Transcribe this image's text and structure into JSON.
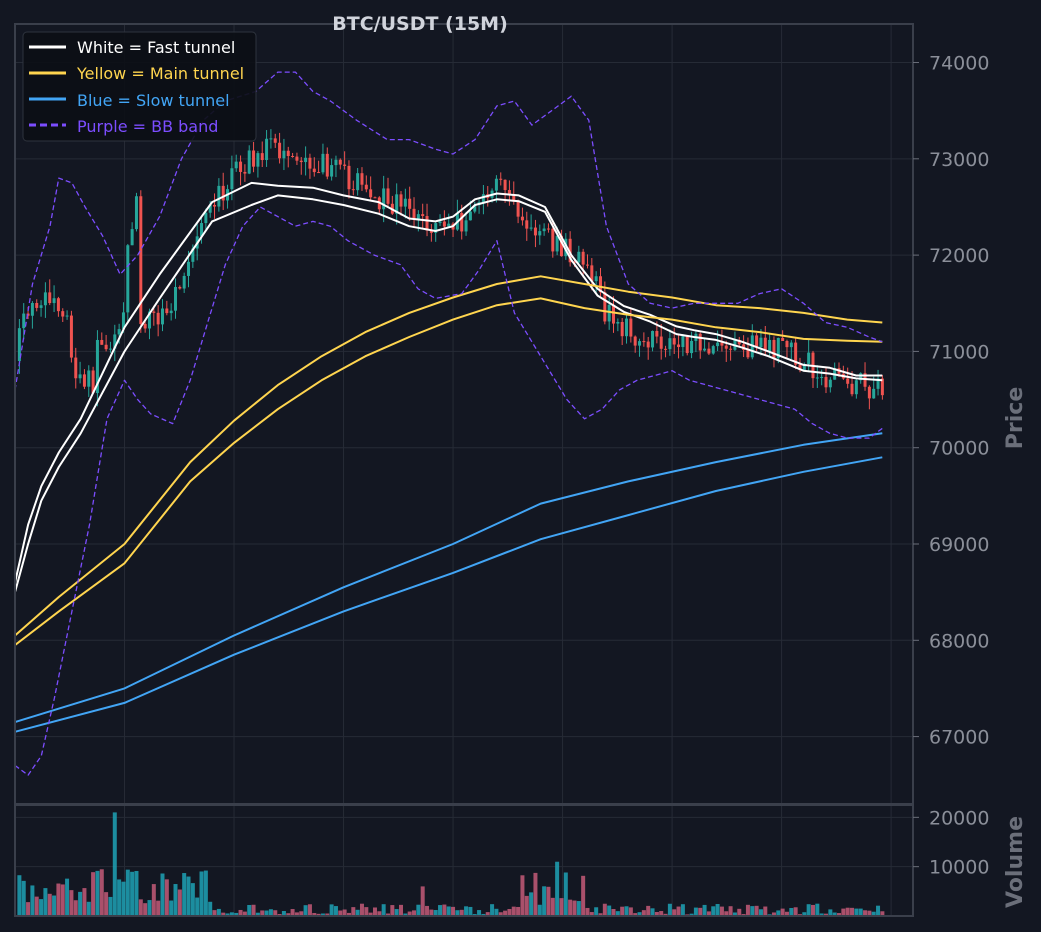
{
  "chart_data": {
    "type": "line",
    "title": "BTC/USDT (15M)",
    "colors": {
      "background": "#131722",
      "grid": "#262b36",
      "frame": "#3a3f4b",
      "up_candle": "#26a69a",
      "down_candle": "#ef5350",
      "fast": "#ffffff",
      "main": "#ffd54f",
      "slow": "#42a5f5",
      "bb": "#7c4dff"
    },
    "price_panel": {
      "ylabel": "Price",
      "ylim": [
        66300,
        74400
      ],
      "yticks": [
        67000,
        68000,
        69000,
        70000,
        71000,
        72000,
        73000,
        74000
      ],
      "ytick_labels": [
        "67000",
        "68000",
        "69000",
        "70000",
        "71000",
        "72000",
        "73000",
        "74000"
      ],
      "grid": true
    },
    "volume_panel": {
      "ylabel": "Volume",
      "ylim": [
        0,
        22500
      ],
      "yticks": [
        10000,
        20000
      ],
      "ytick_labels": [
        "10000",
        "20000"
      ],
      "grid": true
    },
    "x": {
      "range": [
        0,
        205
      ],
      "grid_lines": [
        25,
        50,
        75,
        100,
        125,
        150,
        175,
        200
      ]
    },
    "legend": {
      "position": "top-left",
      "entries": [
        {
          "label": "White = Fast tunnel",
          "color": "#ffffff",
          "style": "solid"
        },
        {
          "label": "Yellow = Main tunnel",
          "color": "#ffd54f",
          "style": "solid"
        },
        {
          "label": "Blue = Slow tunnel",
          "color": "#42a5f5",
          "style": "solid"
        },
        {
          "label": "Purple = BB band",
          "color": "#7c4dff",
          "style": "dashed"
        }
      ]
    },
    "series": [
      {
        "key": "fast_upper",
        "color": "#ffffff",
        "x": [
          0,
          3,
          6,
          10,
          15,
          25,
          33,
          45,
          54,
          60,
          68,
          75,
          83,
          90,
          96,
          100,
          105,
          110,
          115,
          121,
          127,
          133,
          139,
          145,
          151,
          155,
          160,
          166,
          172,
          180,
          186,
          192,
          198
        ],
        "y": [
          68600,
          69200,
          69600,
          69950,
          70300,
          71250,
          71800,
          72550,
          72750,
          72720,
          72700,
          72620,
          72550,
          72380,
          72350,
          72400,
          72580,
          72640,
          72620,
          72500,
          72000,
          71650,
          71470,
          71380,
          71260,
          71220,
          71180,
          71100,
          71000,
          70860,
          70830,
          70750,
          70750
        ]
      },
      {
        "key": "fast_lower",
        "color": "#ffffff",
        "x": [
          0,
          3,
          6,
          10,
          15,
          25,
          33,
          45,
          54,
          60,
          68,
          75,
          83,
          90,
          96,
          100,
          105,
          110,
          115,
          121,
          127,
          133,
          139,
          145,
          151,
          155,
          160,
          166,
          172,
          180,
          186,
          192,
          198
        ],
        "y": [
          68500,
          69000,
          69450,
          69800,
          70150,
          71000,
          71550,
          72350,
          72520,
          72620,
          72580,
          72520,
          72430,
          72300,
          72250,
          72300,
          72520,
          72580,
          72560,
          72450,
          71950,
          71580,
          71410,
          71310,
          71180,
          71150,
          71120,
          71040,
          70950,
          70800,
          70770,
          70720,
          70700
        ]
      },
      {
        "key": "main_upper",
        "color": "#ffd54f",
        "x": [
          0,
          10,
          25,
          40,
          50,
          60,
          70,
          80,
          90,
          100,
          110,
          120,
          130,
          140,
          150,
          160,
          170,
          180,
          190,
          198
        ],
        "y": [
          68050,
          68450,
          69000,
          69850,
          70280,
          70650,
          70950,
          71200,
          71400,
          71560,
          71700,
          71780,
          71700,
          71620,
          71560,
          71480,
          71450,
          71400,
          71330,
          71300
        ]
      },
      {
        "key": "main_lower",
        "color": "#ffd54f",
        "x": [
          0,
          10,
          25,
          40,
          50,
          60,
          70,
          80,
          90,
          100,
          110,
          120,
          130,
          140,
          150,
          160,
          170,
          180,
          190,
          198
        ],
        "y": [
          67950,
          68300,
          68800,
          69650,
          70050,
          70400,
          70700,
          70950,
          71150,
          71330,
          71480,
          71550,
          71450,
          71380,
          71330,
          71250,
          71200,
          71130,
          71110,
          71100
        ]
      },
      {
        "key": "slow_upper",
        "color": "#42a5f5",
        "x": [
          0,
          25,
          50,
          75,
          100,
          120,
          140,
          160,
          180,
          198
        ],
        "y": [
          67150,
          67500,
          68050,
          68550,
          69000,
          69420,
          69650,
          69850,
          70030,
          70150
        ]
      },
      {
        "key": "slow_lower",
        "color": "#42a5f5",
        "x": [
          0,
          25,
          50,
          75,
          100,
          120,
          140,
          160,
          180,
          198
        ],
        "y": [
          67050,
          67350,
          67850,
          68300,
          68700,
          69050,
          69300,
          69550,
          69750,
          69900
        ]
      },
      {
        "key": "bb_upper",
        "color": "#7c4dff",
        "dashed": true,
        "x": [
          0,
          4,
          8,
          10,
          13,
          16,
          20,
          24,
          28,
          33,
          38,
          43,
          48,
          55,
          60,
          64,
          68,
          72,
          78,
          85,
          90,
          96,
          100,
          105,
          110,
          114,
          118,
          124,
          127,
          131,
          135,
          140,
          145,
          150,
          155,
          160,
          165,
          170,
          175,
          180,
          185,
          190,
          195,
          198
        ],
        "y": [
          70600,
          71700,
          72300,
          72800,
          72750,
          72500,
          72200,
          71800,
          72000,
          72400,
          73000,
          73400,
          73600,
          73700,
          73900,
          73900,
          73700,
          73600,
          73400,
          73200,
          73200,
          73100,
          73050,
          73200,
          73550,
          73600,
          73350,
          73550,
          73650,
          73400,
          72300,
          71700,
          71500,
          71450,
          71500,
          71500,
          71500,
          71600,
          71650,
          71500,
          71300,
          71250,
          71150,
          71100
        ]
      },
      {
        "key": "bb_lower",
        "color": "#7c4dff",
        "dashed": true,
        "x": [
          0,
          3,
          6,
          9,
          13,
          17,
          21,
          25,
          28,
          31,
          36,
          40,
          44,
          48,
          52,
          56,
          60,
          64,
          68,
          72,
          76,
          82,
          88,
          92,
          96,
          102,
          106,
          110,
          114,
          118,
          122,
          126,
          130,
          134,
          138,
          142,
          146,
          150,
          154,
          158,
          162,
          166,
          170,
          174,
          178,
          182,
          186,
          190,
          195,
          198
        ],
        "y": [
          66700,
          66600,
          66800,
          67400,
          68300,
          69200,
          70300,
          70700,
          70500,
          70350,
          70250,
          70700,
          71300,
          71900,
          72300,
          72500,
          72400,
          72300,
          72350,
          72300,
          72150,
          72000,
          71900,
          71650,
          71550,
          71600,
          71850,
          72150,
          71400,
          71100,
          70800,
          70500,
          70300,
          70400,
          70600,
          70700,
          70750,
          70800,
          70700,
          70650,
          70600,
          70550,
          70500,
          70450,
          70400,
          70250,
          70150,
          70100,
          70100,
          70200
        ]
      }
    ],
    "candles": {
      "count": 200,
      "description": "OHLC candlesticks, 15-minute bars"
    },
    "volume_bars": {
      "count": 200
    }
  }
}
